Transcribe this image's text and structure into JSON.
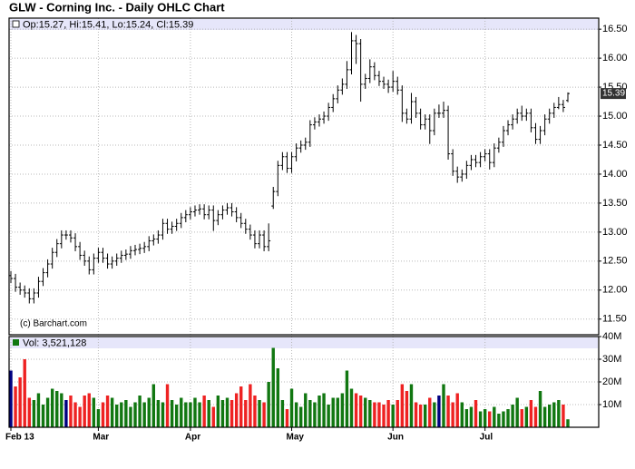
{
  "chart_data": {
    "type": "ohlc",
    "title": "GLW - Corning Inc. - Daily OHLC Chart",
    "ohlc_label": "Op:15.27, Hi:15.41, Lo:15.24, Cl:15.39",
    "copyright": "(c) Barchart.com",
    "categories": [
      "Feb 13",
      null,
      null,
      null,
      null,
      null,
      null,
      null,
      null,
      null,
      null,
      null,
      null,
      null,
      null,
      null,
      null,
      null,
      null,
      "Mar",
      null,
      null,
      null,
      null,
      null,
      null,
      null,
      null,
      null,
      null,
      null,
      null,
      null,
      null,
      null,
      null,
      null,
      null,
      null,
      "Apr",
      null,
      null,
      null,
      null,
      null,
      null,
      null,
      null,
      null,
      null,
      null,
      null,
      null,
      null,
      null,
      null,
      null,
      null,
      null,
      null,
      null,
      "May",
      null,
      null,
      null,
      null,
      null,
      null,
      null,
      null,
      null,
      null,
      null,
      null,
      null,
      null,
      null,
      null,
      null,
      null,
      null,
      null,
      null,
      "Jun",
      null,
      null,
      null,
      null,
      null,
      null,
      null,
      null,
      null,
      null,
      null,
      null,
      null,
      null,
      null,
      null,
      null,
      null,
      null,
      "Jul",
      null,
      null,
      null,
      null,
      null,
      null,
      null,
      null,
      null,
      null,
      null,
      null,
      null,
      null,
      null,
      null,
      null,
      null
    ],
    "open": [
      12.25,
      12.2,
      12.05,
      12.0,
      11.95,
      11.85,
      11.95,
      12.15,
      12.3,
      12.45,
      12.65,
      12.8,
      12.95,
      12.95,
      12.9,
      12.75,
      12.6,
      12.5,
      12.35,
      12.55,
      12.65,
      12.55,
      12.45,
      12.5,
      12.55,
      12.6,
      12.62,
      12.68,
      12.7,
      12.72,
      12.75,
      12.85,
      12.88,
      12.95,
      13.15,
      13.05,
      13.1,
      13.15,
      13.25,
      13.3,
      13.35,
      13.38,
      13.4,
      13.3,
      13.38,
      13.2,
      13.3,
      13.38,
      13.42,
      13.35,
      13.25,
      13.15,
      13.05,
      12.95,
      12.8,
      12.95,
      12.75,
      13.45,
      13.7,
      14.15,
      14.3,
      14.1,
      14.3,
      14.45,
      14.5,
      14.55,
      14.85,
      14.9,
      14.95,
      15.0,
      15.15,
      15.3,
      15.45,
      15.55,
      15.8,
      16.3,
      16.25,
      15.55,
      15.65,
      15.85,
      15.7,
      15.6,
      15.55,
      15.5,
      15.6,
      15.45,
      15.05,
      14.95,
      15.25,
      15.05,
      14.85,
      14.95,
      14.75,
      15.05,
      15.05,
      15.1,
      14.35,
      14.05,
      13.95,
      14.0,
      14.15,
      14.25,
      14.2,
      14.3,
      14.35,
      14.2,
      14.45,
      14.55,
      14.75,
      14.85,
      14.95,
      15.05,
      15.0,
      15.05,
      14.8,
      14.6,
      14.75,
      14.95,
      15.05,
      15.15,
      15.2,
      15.27
    ],
    "high": [
      12.33,
      12.28,
      12.13,
      12.08,
      12.03,
      12.03,
      12.23,
      12.38,
      12.53,
      12.73,
      12.88,
      13.03,
      13.03,
      13.03,
      12.98,
      12.83,
      12.68,
      12.58,
      12.63,
      12.73,
      12.73,
      12.63,
      12.58,
      12.63,
      12.68,
      12.7,
      12.76,
      12.78,
      12.8,
      12.83,
      12.93,
      12.96,
      13.03,
      13.23,
      13.23,
      13.18,
      13.23,
      13.33,
      13.38,
      13.43,
      13.46,
      13.48,
      13.48,
      13.46,
      13.46,
      13.38,
      13.46,
      13.5,
      13.5,
      13.43,
      13.33,
      13.23,
      13.13,
      13.03,
      13.03,
      13.03,
      13.15,
      13.78,
      14.23,
      14.38,
      14.38,
      14.38,
      14.53,
      14.58,
      14.63,
      14.93,
      14.98,
      15.03,
      15.08,
      15.23,
      15.38,
      15.53,
      15.65,
      15.95,
      16.45,
      16.4,
      16.33,
      15.73,
      15.98,
      15.93,
      15.78,
      15.68,
      15.63,
      15.78,
      15.68,
      15.53,
      15.13,
      15.4,
      15.33,
      15.13,
      15.03,
      15.03,
      15.13,
      15.2,
      15.25,
      15.18,
      14.43,
      14.13,
      14.08,
      14.23,
      14.33,
      14.33,
      14.38,
      14.43,
      14.43,
      14.53,
      14.63,
      14.83,
      14.93,
      15.03,
      15.13,
      15.18,
      15.13,
      15.13,
      14.88,
      14.83,
      15.03,
      15.13,
      15.23,
      15.33,
      15.28,
      15.41
    ],
    "low": [
      12.12,
      11.97,
      11.92,
      11.87,
      11.77,
      11.77,
      11.87,
      12.07,
      12.22,
      12.37,
      12.57,
      12.72,
      12.87,
      12.82,
      12.67,
      12.52,
      12.42,
      12.27,
      12.27,
      12.47,
      12.47,
      12.37,
      12.37,
      12.42,
      12.47,
      12.52,
      12.54,
      12.6,
      12.62,
      12.64,
      12.67,
      12.77,
      12.8,
      12.87,
      12.97,
      12.97,
      13.02,
      13.07,
      13.17,
      13.22,
      13.27,
      13.3,
      13.22,
      13.22,
      13.02,
      13.12,
      13.22,
      13.3,
      13.27,
      13.17,
      13.07,
      12.97,
      12.87,
      12.72,
      12.72,
      12.67,
      12.67,
      13.4,
      13.62,
      14.07,
      14.02,
      14.02,
      14.22,
      14.37,
      14.42,
      14.47,
      14.77,
      14.82,
      14.87,
      14.92,
      15.07,
      15.22,
      15.37,
      15.47,
      15.72,
      15.9,
      15.25,
      15.47,
      15.57,
      15.62,
      15.52,
      15.47,
      15.4,
      15.42,
      15.37,
      14.9,
      14.87,
      14.87,
      14.97,
      14.77,
      14.77,
      14.52,
      14.67,
      14.97,
      14.97,
      14.25,
      13.97,
      13.85,
      13.87,
      13.92,
      14.07,
      14.12,
      14.12,
      14.22,
      14.08,
      14.12,
      14.37,
      14.47,
      14.67,
      14.77,
      14.87,
      14.92,
      14.92,
      14.72,
      14.52,
      14.52,
      14.67,
      14.87,
      14.97,
      15.12,
      15.07,
      15.24
    ],
    "close": [
      12.2,
      12.05,
      12.0,
      11.95,
      11.85,
      11.95,
      12.15,
      12.3,
      12.45,
      12.65,
      12.8,
      12.95,
      12.95,
      12.9,
      12.75,
      12.6,
      12.5,
      12.35,
      12.55,
      12.65,
      12.55,
      12.45,
      12.5,
      12.55,
      12.6,
      12.62,
      12.68,
      12.7,
      12.72,
      12.75,
      12.85,
      12.88,
      12.95,
      13.15,
      13.05,
      13.1,
      13.15,
      13.25,
      13.3,
      13.35,
      13.38,
      13.4,
      13.3,
      13.38,
      13.2,
      13.3,
      13.38,
      13.42,
      13.35,
      13.25,
      13.15,
      13.05,
      12.95,
      12.8,
      12.95,
      12.75,
      12.85,
      13.7,
      14.15,
      14.3,
      14.1,
      14.3,
      14.45,
      14.5,
      14.55,
      14.85,
      14.9,
      14.95,
      15.0,
      15.15,
      15.3,
      15.45,
      15.55,
      15.8,
      16.3,
      16.25,
      15.55,
      15.65,
      15.85,
      15.7,
      15.6,
      15.55,
      15.5,
      15.6,
      15.45,
      15.05,
      14.95,
      15.25,
      15.05,
      14.85,
      14.95,
      14.75,
      15.05,
      15.05,
      15.1,
      14.35,
      14.05,
      13.95,
      14.0,
      14.15,
      14.25,
      14.2,
      14.3,
      14.35,
      14.2,
      14.45,
      14.55,
      14.75,
      14.85,
      14.95,
      15.05,
      15.0,
      15.05,
      14.8,
      14.6,
      14.75,
      14.95,
      15.05,
      15.15,
      15.2,
      15.15,
      15.39
    ],
    "bar_color": "#000000",
    "ylim": [
      11.23,
      16.69
    ],
    "yticks": [
      {
        "value": 11.5,
        "label": "11.50"
      },
      {
        "value": 12,
        "label": "12.00"
      },
      {
        "value": 12.5,
        "label": "12.50"
      },
      {
        "value": 13,
        "label": "13.00"
      },
      {
        "value": 13.5,
        "label": "13.50"
      },
      {
        "value": 14,
        "label": "14.00"
      },
      {
        "value": 14.5,
        "label": "14.50"
      },
      {
        "value": 15,
        "label": "15.00"
      },
      {
        "value": 15.5,
        "label": "15.50"
      },
      {
        "value": 16,
        "label": "16.00"
      },
      {
        "value": 16.5,
        "label": "16.50"
      }
    ],
    "grid": true,
    "volume": {
      "label": "Vol: 3,521,128",
      "values": [
        25,
        18,
        22,
        30,
        13,
        12,
        15,
        10,
        13,
        17,
        16,
        15,
        12,
        14,
        11,
        9,
        14,
        15,
        13,
        8,
        11,
        14,
        13,
        10,
        11,
        12,
        9,
        11,
        14,
        11,
        13,
        19,
        12,
        11,
        19,
        12,
        10,
        13,
        11,
        11,
        13,
        11,
        14,
        12,
        9,
        14,
        12,
        13,
        12,
        15,
        18,
        12,
        19,
        14,
        12,
        11,
        20,
        35,
        26,
        12,
        8,
        17,
        11,
        9,
        15,
        12,
        11,
        14,
        15,
        10,
        13,
        13,
        15,
        25,
        17,
        15,
        14,
        13,
        12,
        11,
        11,
        10,
        12,
        10,
        12,
        19,
        16,
        19,
        11,
        10,
        10,
        13,
        11,
        14,
        19,
        14,
        11,
        15,
        11,
        8,
        9,
        12,
        7,
        8,
        7,
        9,
        6,
        7,
        8,
        10,
        13,
        8,
        9,
        12,
        9,
        16,
        9,
        10,
        11,
        12,
        10,
        3.521128
      ],
      "ylim": [
        0,
        40
      ],
      "yticks": [
        {
          "value": 10,
          "label": "10M"
        },
        {
          "value": 20,
          "label": "20M"
        },
        {
          "value": 30,
          "label": "30M"
        },
        {
          "value": 40,
          "label": "40M"
        }
      ],
      "up_color": "#117711",
      "down_color": "#ee2222",
      "flat_color": "#000080"
    }
  }
}
